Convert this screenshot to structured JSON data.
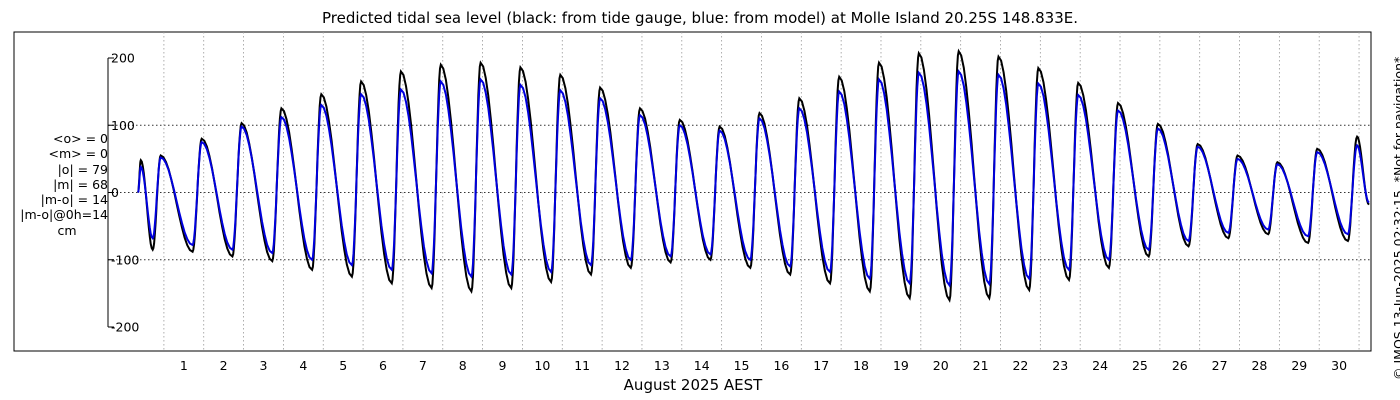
{
  "chart_data": {
    "type": "line",
    "title": "Predicted tidal sea level (black: from tide gauge, blue: from model) at Molle Island 20.25S 148.833E.",
    "xlabel": "August 2025 AEST",
    "ylabel": "",
    "xlim": [
      0.35,
      31.3
    ],
    "ylim": [
      -210,
      210
    ],
    "yticks": [
      200,
      100,
      0,
      -100,
      -200
    ],
    "xtick_labels": [
      "1",
      "2",
      "3",
      "4",
      "5",
      "6",
      "7",
      "8",
      "9",
      "10",
      "11",
      "12",
      "13",
      "14",
      "15",
      "16",
      "17",
      "18",
      "19",
      "20",
      "21",
      "22",
      "23",
      "24",
      "25",
      "26",
      "27",
      "28",
      "29",
      "30"
    ],
    "grid": true,
    "legend": "none",
    "x_unit": "day of August 2025 (AEST)",
    "high_tide_peaks": [
      {
        "day": 0.42,
        "observed": 48,
        "model": 38
      },
      {
        "day": 0.92,
        "observed": 55,
        "model": 52
      },
      {
        "day": 1.95,
        "observed": 80,
        "model": 75
      },
      {
        "day": 2.95,
        "observed": 103,
        "model": 98
      },
      {
        "day": 3.95,
        "observed": 125,
        "model": 112
      },
      {
        "day": 4.95,
        "observed": 146,
        "model": 130
      },
      {
        "day": 5.95,
        "observed": 165,
        "model": 146
      },
      {
        "day": 6.95,
        "observed": 180,
        "model": 153
      },
      {
        "day": 7.95,
        "observed": 190,
        "model": 165
      },
      {
        "day": 8.95,
        "observed": 193,
        "model": 168
      },
      {
        "day": 9.95,
        "observed": 186,
        "model": 160
      },
      {
        "day": 10.95,
        "observed": 175,
        "model": 152
      },
      {
        "day": 11.95,
        "observed": 156,
        "model": 140
      },
      {
        "day": 12.95,
        "observed": 125,
        "model": 115
      },
      {
        "day": 13.95,
        "observed": 108,
        "model": 100
      },
      {
        "day": 14.95,
        "observed": 98,
        "model": 92
      },
      {
        "day": 15.95,
        "observed": 118,
        "model": 110
      },
      {
        "day": 16.95,
        "observed": 140,
        "model": 125
      },
      {
        "day": 17.95,
        "observed": 172,
        "model": 150
      },
      {
        "day": 18.95,
        "observed": 193,
        "model": 168
      },
      {
        "day": 19.95,
        "observed": 207,
        "model": 178
      },
      {
        "day": 20.95,
        "observed": 210,
        "model": 180
      },
      {
        "day": 21.95,
        "observed": 202,
        "model": 175
      },
      {
        "day": 22.95,
        "observed": 185,
        "model": 162
      },
      {
        "day": 23.95,
        "observed": 163,
        "model": 145
      },
      {
        "day": 24.95,
        "observed": 133,
        "model": 122
      },
      {
        "day": 25.95,
        "observed": 102,
        "model": 95
      },
      {
        "day": 26.95,
        "observed": 72,
        "model": 68
      },
      {
        "day": 27.95,
        "observed": 55,
        "model": 50
      },
      {
        "day": 28.95,
        "observed": 45,
        "model": 42
      },
      {
        "day": 29.95,
        "observed": 65,
        "model": 60
      },
      {
        "day": 30.95,
        "observed": 83,
        "model": 70
      }
    ],
    "low_tide_troughs": [
      {
        "day": 0.72,
        "observed": -85,
        "model": -68
      },
      {
        "day": 1.72,
        "observed": -88,
        "model": -78
      },
      {
        "day": 2.72,
        "observed": -95,
        "model": -85
      },
      {
        "day": 3.72,
        "observed": -102,
        "model": -90
      },
      {
        "day": 4.72,
        "observed": -115,
        "model": -100
      },
      {
        "day": 5.72,
        "observed": -125,
        "model": -108
      },
      {
        "day": 6.72,
        "observed": -135,
        "model": -115
      },
      {
        "day": 7.72,
        "observed": -142,
        "model": -120
      },
      {
        "day": 8.72,
        "observed": -147,
        "model": -125
      },
      {
        "day": 9.72,
        "observed": -142,
        "model": -122
      },
      {
        "day": 10.72,
        "observed": -133,
        "model": -118
      },
      {
        "day": 11.72,
        "observed": -122,
        "model": -108
      },
      {
        "day": 12.72,
        "observed": -112,
        "model": -100
      },
      {
        "day": 13.72,
        "observed": -104,
        "model": -95
      },
      {
        "day": 14.72,
        "observed": -100,
        "model": -92
      },
      {
        "day": 15.72,
        "observed": -112,
        "model": -100
      },
      {
        "day": 16.72,
        "observed": -122,
        "model": -110
      },
      {
        "day": 17.72,
        "observed": -135,
        "model": -118
      },
      {
        "day": 18.72,
        "observed": -147,
        "model": -128
      },
      {
        "day": 19.72,
        "observed": -157,
        "model": -135
      },
      {
        "day": 20.72,
        "observed": -160,
        "model": -138
      },
      {
        "day": 21.72,
        "observed": -157,
        "model": -136
      },
      {
        "day": 22.72,
        "observed": -145,
        "model": -128
      },
      {
        "day": 23.72,
        "observed": -130,
        "model": -115
      },
      {
        "day": 24.72,
        "observed": -112,
        "model": -100
      },
      {
        "day": 25.72,
        "observed": -95,
        "model": -85
      },
      {
        "day": 26.72,
        "observed": -80,
        "model": -72
      },
      {
        "day": 27.72,
        "observed": -68,
        "model": -60
      },
      {
        "day": 28.72,
        "observed": -62,
        "model": -55
      },
      {
        "day": 29.72,
        "observed": -75,
        "model": -65
      },
      {
        "day": 30.72,
        "observed": -72,
        "model": -62
      }
    ],
    "series": [
      {
        "name": "from tide gauge",
        "color": "#000000",
        "key": "observed"
      },
      {
        "name": "from model",
        "color": "#0000dd",
        "key": "model"
      }
    ]
  },
  "stats": {
    "mean_obs": "<o> = 0",
    "mean_model": "<m> = 0",
    "abs_obs": "|o| = 79",
    "abs_model": "|m| = 68",
    "abs_diff": "|m-o| = 14",
    "abs_diff_0h": "|m-o|@0h=14",
    "unit": "cm"
  },
  "copyright": "© IMOS 13-Jun-2025 02:32:15.  *Not for navigation*"
}
